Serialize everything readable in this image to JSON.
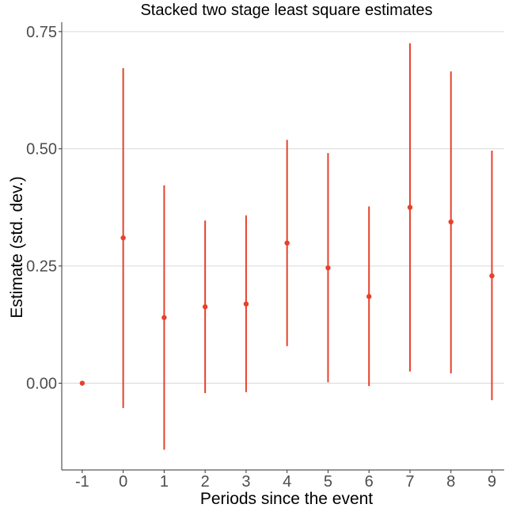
{
  "chart_data": {
    "type": "scatter",
    "title": "Stacked two stage least square estimates",
    "xlabel": "Periods since the event",
    "ylabel": "Estimate (std. dev.)",
    "x": [
      -1,
      0,
      1,
      2,
      3,
      4,
      5,
      6,
      7,
      8,
      9
    ],
    "y": [
      0.0,
      0.31,
      0.14,
      0.163,
      0.169,
      0.299,
      0.246,
      0.185,
      0.375,
      0.344,
      0.229
    ],
    "ci_lower": [
      0.0,
      -0.053,
      -0.142,
      -0.021,
      -0.019,
      0.079,
      0.002,
      -0.006,
      0.025,
      0.021,
      -0.036
    ],
    "ci_upper": [
      0.0,
      0.672,
      0.422,
      0.347,
      0.358,
      0.519,
      0.491,
      0.377,
      0.725,
      0.665,
      0.496
    ],
    "xlim": [
      -1.5,
      9.3
    ],
    "ylim": [
      -0.185,
      0.77
    ],
    "yticks": [
      0.0,
      0.25,
      0.5,
      0.75
    ],
    "ytick_labels": [
      "0.00",
      "0.25",
      "0.50",
      "0.75"
    ],
    "xticks": [
      -1,
      0,
      1,
      2,
      3,
      4,
      5,
      6,
      7,
      8,
      9
    ],
    "xtick_labels": [
      "-1",
      "0",
      "1",
      "2",
      "3",
      "4",
      "5",
      "6",
      "7",
      "8",
      "9"
    ],
    "grid": "horizontal major",
    "color": "#e8412a",
    "grid_color": "#d9d9d9",
    "axis_color": "#333333"
  }
}
